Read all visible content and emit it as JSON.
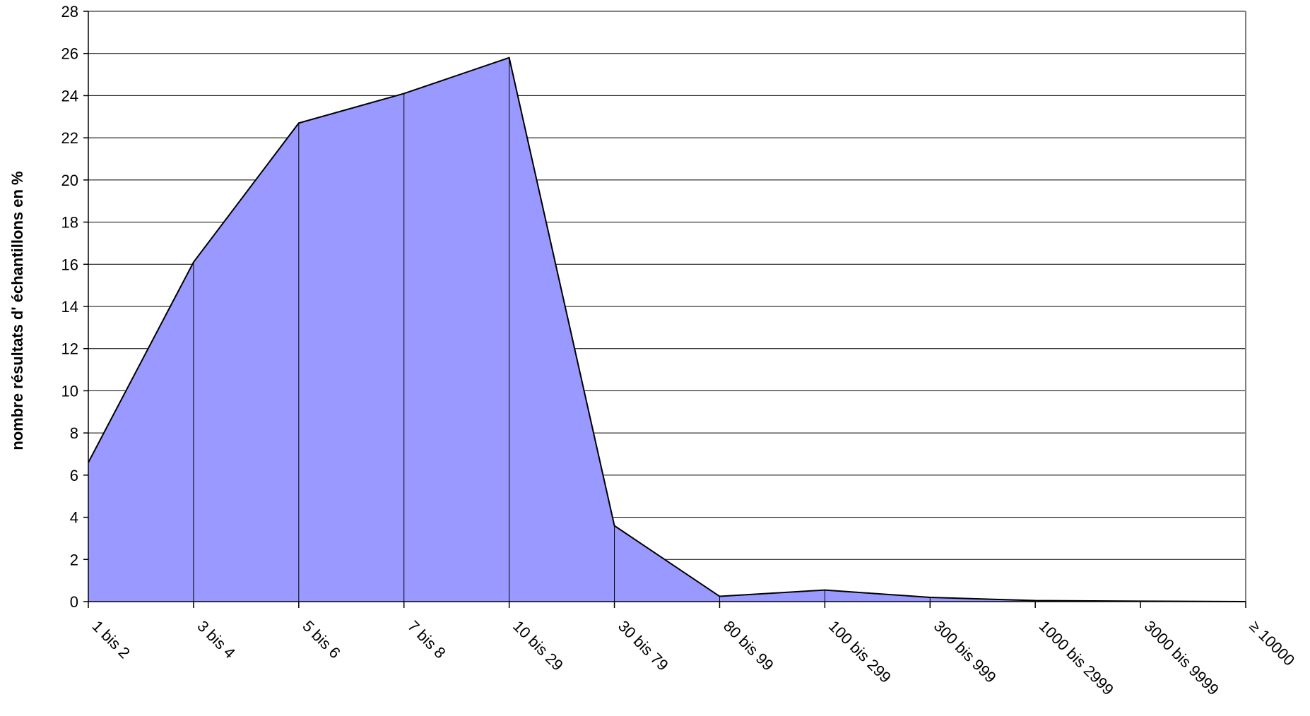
{
  "chart_data": {
    "type": "area",
    "title": "",
    "xlabel": "",
    "ylabel": "nombre résultats d' échantillons en %",
    "categories": [
      "1 bis 2",
      "3 bis 4",
      "5 bis 6",
      "7 bis 8",
      "10 bis 29",
      "30 bis 79",
      "80 bis 99",
      "100 bis 299",
      "300 bis 999",
      "1000 bis 2999",
      "3000 bis 9999",
      "≥ 10000"
    ],
    "series": [
      {
        "values": [
          6.6,
          16.1,
          22.7,
          24.1,
          25.8,
          3.6,
          0.25,
          0.55,
          0.2,
          0.05,
          0.02,
          0.0
        ]
      }
    ],
    "ylim": [
      0,
      28
    ],
    "yticks": [
      0,
      2,
      4,
      6,
      8,
      10,
      12,
      14,
      16,
      18,
      20,
      22,
      24,
      26,
      28
    ],
    "yticklabels": [
      "0",
      "2",
      "4",
      "6",
      "8",
      "10",
      "12",
      "14",
      "16",
      "18",
      "20",
      "22",
      "24",
      "26",
      "28"
    ],
    "grid": true,
    "legend": "none",
    "colors": {
      "fill": "#9999ff",
      "line": "#000000",
      "grid": "#000000",
      "plot_border": "#808080"
    }
  }
}
